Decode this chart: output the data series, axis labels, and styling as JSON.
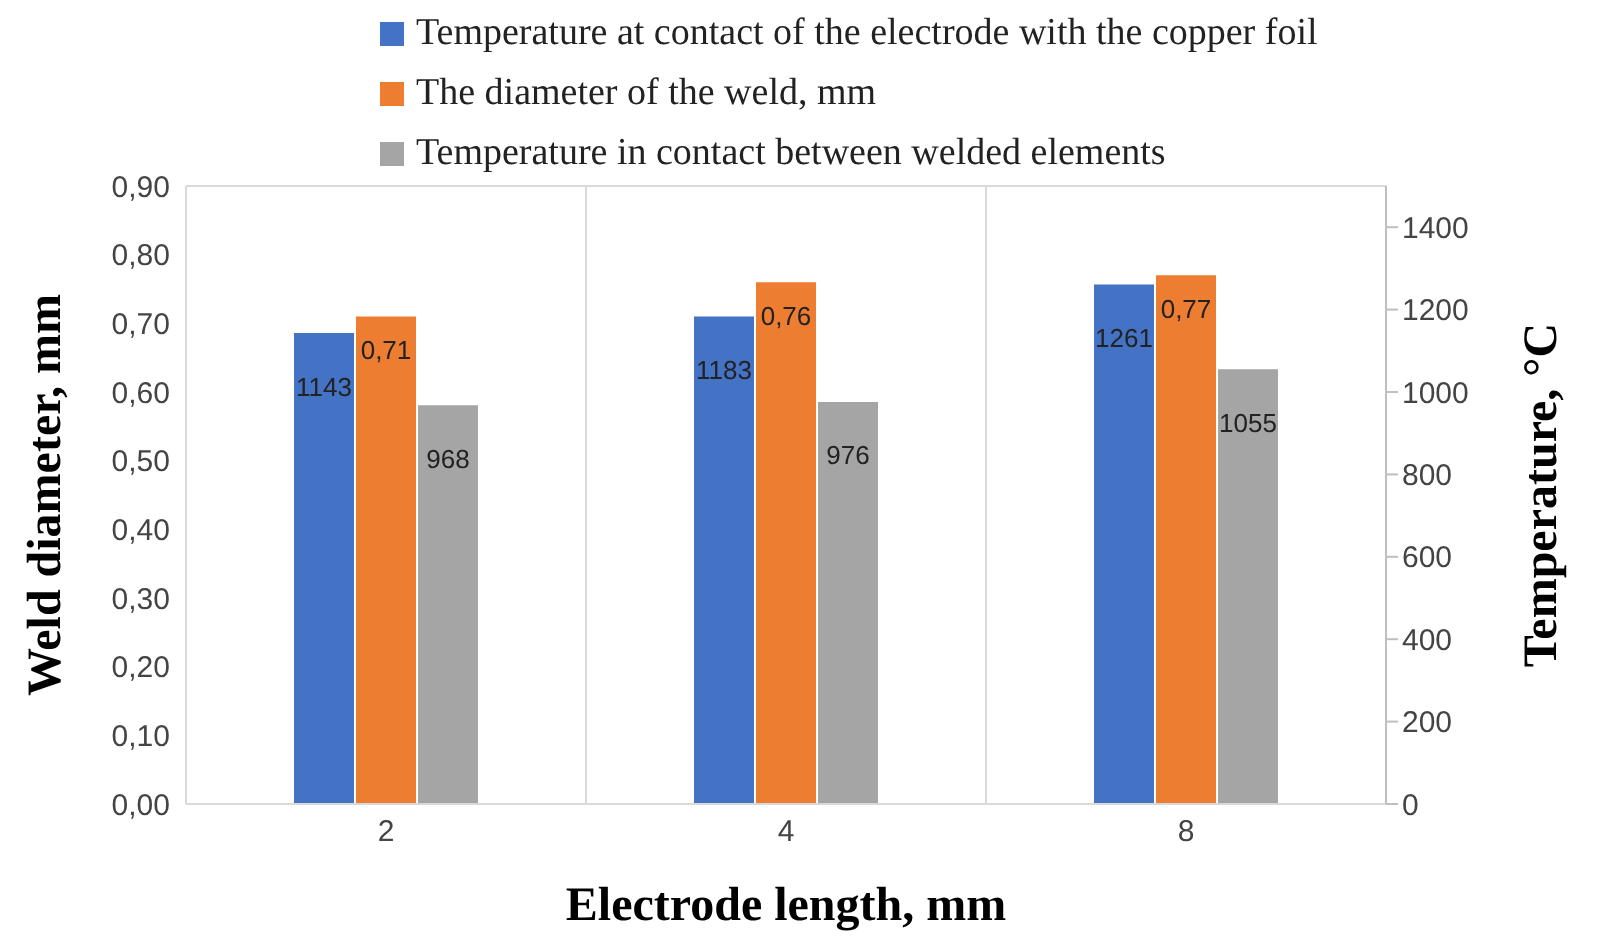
{
  "chart_data": {
    "type": "bar",
    "xlabel": "Electrode length, mm",
    "ylabel": "Weld diameter, mm",
    "y2label": "Temperature, °C",
    "categories": [
      "2",
      "4",
      "8"
    ],
    "series": [
      {
        "name": "Temperature at contact of the electrode with the copper foil",
        "color": "#4472c4",
        "axis": "y2",
        "values": [
          1143,
          1183,
          1261
        ],
        "value_labels": [
          "1143",
          "1183",
          "1261"
        ]
      },
      {
        "name": "The diameter of the weld, mm",
        "color": "#ed7d31",
        "axis": "y",
        "values": [
          0.71,
          0.76,
          0.77
        ],
        "value_labels": [
          "0,71",
          "0,76",
          "0,77"
        ]
      },
      {
        "name": "Temperature in contact between welded elements",
        "color": "#a5a5a5",
        "axis": "y2",
        "values": [
          968,
          976,
          1055
        ],
        "value_labels": [
          "968",
          "976",
          "1055"
        ]
      }
    ],
    "ylim": [
      0,
      0.9
    ],
    "yticks": [
      {
        "value": 0,
        "label": "0,00"
      },
      {
        "value": 0.1,
        "label": "0,10"
      },
      {
        "value": 0.2,
        "label": "0,20"
      },
      {
        "value": 0.3,
        "label": "0,30"
      },
      {
        "value": 0.4,
        "label": "0,40"
      },
      {
        "value": 0.5,
        "label": "0,50"
      },
      {
        "value": 0.6,
        "label": "0,60"
      },
      {
        "value": 0.7,
        "label": "0,70"
      },
      {
        "value": 0.8,
        "label": "0,80"
      },
      {
        "value": 0.9,
        "label": "0,90"
      }
    ],
    "y2lim": [
      0,
      1500
    ],
    "y2ticks": [
      0,
      200,
      400,
      600,
      800,
      1000,
      1200,
      1400
    ],
    "grid": true,
    "legend": "top"
  }
}
